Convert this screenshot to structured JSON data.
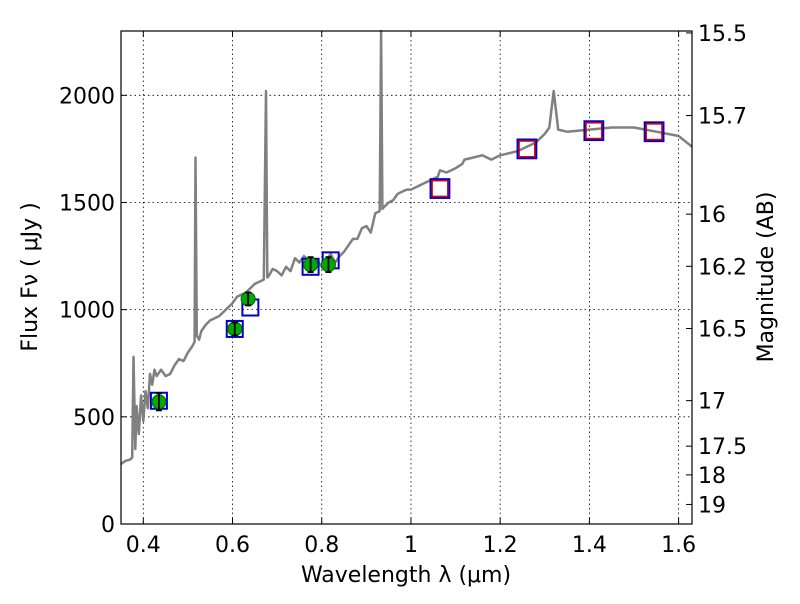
{
  "chart_data": {
    "type": "line",
    "title": "",
    "xlabel": "Wavelength  λ (μm)",
    "ylabel": "Flux  Fν  ( μJy )",
    "y2label": "Magnitude (AB)",
    "xlim": [
      0.35,
      1.63
    ],
    "ylim": [
      0,
      2300
    ],
    "grid": true,
    "x_ticks": [
      {
        "v": 0.4,
        "label": "0.4"
      },
      {
        "v": 0.6,
        "label": "0.6"
      },
      {
        "v": 0.8,
        "label": "0.8"
      },
      {
        "v": 1.0,
        "label": "1"
      },
      {
        "v": 1.2,
        "label": "1.2"
      },
      {
        "v": 1.4,
        "label": "1.4"
      },
      {
        "v": 1.6,
        "label": "1.6"
      }
    ],
    "y_ticks": [
      {
        "v": 0,
        "label": "0"
      },
      {
        "v": 500,
        "label": "500"
      },
      {
        "v": 1000,
        "label": "1000"
      },
      {
        "v": 1500,
        "label": "1500"
      },
      {
        "v": 2000,
        "label": "2000"
      }
    ],
    "y2_ticks": [
      {
        "mag": 15.5,
        "label": "15.5"
      },
      {
        "mag": 15.7,
        "label": "15.7"
      },
      {
        "mag": 16,
        "label": "16"
      },
      {
        "mag": 16.2,
        "label": "16.2"
      },
      {
        "mag": 16.5,
        "label": "16.5"
      },
      {
        "mag": 17,
        "label": "17"
      },
      {
        "mag": 17.5,
        "label": "17.5"
      },
      {
        "mag": 18,
        "label": "18"
      },
      {
        "mag": 19,
        "label": "19"
      }
    ],
    "spectrum": {
      "color": "#808080",
      "x": [
        0.35,
        0.36,
        0.37,
        0.375,
        0.378,
        0.382,
        0.385,
        0.39,
        0.395,
        0.4,
        0.405,
        0.41,
        0.415,
        0.42,
        0.425,
        0.43,
        0.44,
        0.45,
        0.46,
        0.47,
        0.48,
        0.49,
        0.5,
        0.51,
        0.515,
        0.517,
        0.52,
        0.525,
        0.53,
        0.54,
        0.55,
        0.56,
        0.57,
        0.58,
        0.59,
        0.6,
        0.61,
        0.62,
        0.63,
        0.64,
        0.65,
        0.66,
        0.67,
        0.675,
        0.678,
        0.682,
        0.69,
        0.7,
        0.71,
        0.72,
        0.73,
        0.74,
        0.75,
        0.76,
        0.77,
        0.78,
        0.79,
        0.8,
        0.81,
        0.82,
        0.83,
        0.84,
        0.85,
        0.86,
        0.87,
        0.88,
        0.89,
        0.9,
        0.91,
        0.92,
        0.93,
        0.933,
        0.936,
        0.94,
        0.95,
        0.96,
        0.97,
        0.98,
        0.99,
        1.0,
        1.02,
        1.04,
        1.06,
        1.065,
        1.08,
        1.1,
        1.115,
        1.12,
        1.14,
        1.16,
        1.18,
        1.2,
        1.22,
        1.24,
        1.26,
        1.28,
        1.3,
        1.31,
        1.32,
        1.33,
        1.35,
        1.4,
        1.45,
        1.5,
        1.55,
        1.6,
        1.63
      ],
      "y": [
        280,
        295,
        300,
        310,
        780,
        350,
        550,
        420,
        600,
        480,
        620,
        540,
        700,
        650,
        720,
        690,
        720,
        690,
        700,
        740,
        770,
        760,
        800,
        830,
        850,
        1710,
        880,
        860,
        900,
        930,
        950,
        960,
        970,
        990,
        1010,
        1030,
        1060,
        1070,
        1080,
        1100,
        1120,
        1130,
        1140,
        2020,
        1150,
        1160,
        1190,
        1180,
        1160,
        1200,
        1180,
        1240,
        1220,
        1250,
        1230,
        1210,
        1230,
        1200,
        1230,
        1260,
        1220,
        1250,
        1270,
        1300,
        1330,
        1330,
        1380,
        1390,
        1360,
        1450,
        1460,
        2300,
        1470,
        1480,
        1500,
        1510,
        1540,
        1550,
        1560,
        1560,
        1580,
        1600,
        1620,
        1650,
        1640,
        1660,
        1680,
        1700,
        1710,
        1720,
        1700,
        1720,
        1730,
        1740,
        1760,
        1780,
        1820,
        1850,
        2020,
        1840,
        1830,
        1840,
        1850,
        1850,
        1830,
        1810,
        1760
      ]
    },
    "photometry": [
      {
        "x": 0.435,
        "y": 570,
        "err": 40
      },
      {
        "x": 0.605,
        "y": 910,
        "err": 30
      },
      {
        "x": 0.635,
        "y": 1050,
        "err": 30
      },
      {
        "x": 0.775,
        "y": 1210,
        "err": 35
      },
      {
        "x": 0.815,
        "y": 1210,
        "err": 35
      }
    ],
    "photometry_color": "#00aa00",
    "synthetic_optical": [
      {
        "x": 0.435,
        "y": 575
      },
      {
        "x": 0.605,
        "y": 910
      },
      {
        "x": 0.64,
        "y": 1010
      },
      {
        "x": 0.775,
        "y": 1200
      },
      {
        "x": 0.82,
        "y": 1230
      }
    ],
    "synthetic_nir": [
      {
        "x": 1.065,
        "y": 1565
      },
      {
        "x": 1.26,
        "y": 1750
      },
      {
        "x": 1.41,
        "y": 1835
      },
      {
        "x": 1.545,
        "y": 1830
      }
    ],
    "model_marker_color": "#0000cc",
    "nir_marker_color": "#dd0000"
  }
}
